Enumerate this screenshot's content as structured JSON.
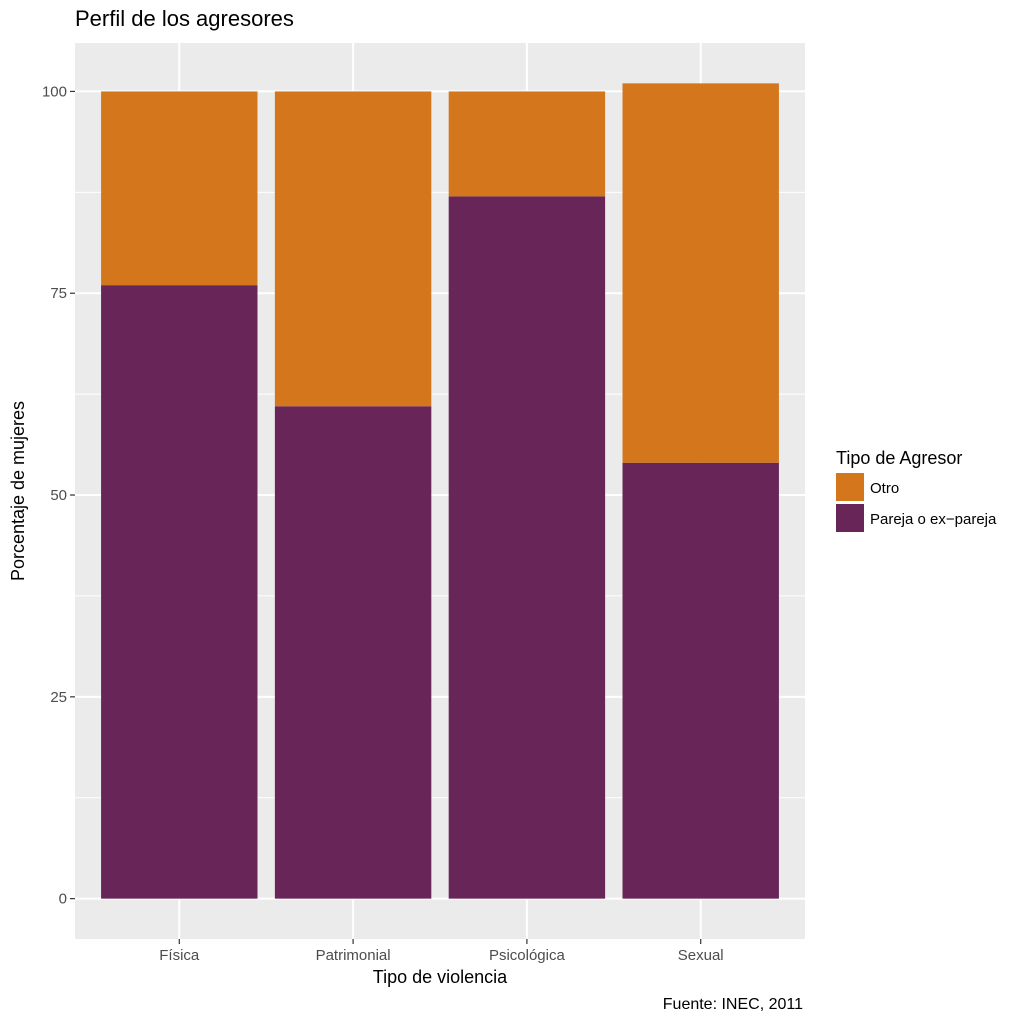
{
  "chart_data": {
    "type": "bar",
    "stacked": true,
    "title": "Perfil de los agresores",
    "xlabel": "Tipo de violencia",
    "ylabel": "Porcentaje de mujeres",
    "caption": "Fuente: INEC, 2011",
    "categories": [
      "Física",
      "Patrimonial",
      "Psicológica",
      "Sexual"
    ],
    "series": [
      {
        "name": "Pareja o ex−pareja",
        "color": "#672657",
        "values": [
          76,
          61,
          87,
          54
        ]
      },
      {
        "name": "Otro",
        "color": "#D4771C",
        "values": [
          24,
          39,
          13,
          47
        ]
      }
    ],
    "ylim": [
      -5,
      106
    ],
    "yticks": [
      0,
      25,
      50,
      75,
      100
    ],
    "grid": true,
    "legend": {
      "title": "Tipo de Agresor",
      "position": "right",
      "order": [
        "Otro",
        "Pareja o ex−pareja"
      ]
    },
    "panel_background": "#EBEBEB"
  }
}
